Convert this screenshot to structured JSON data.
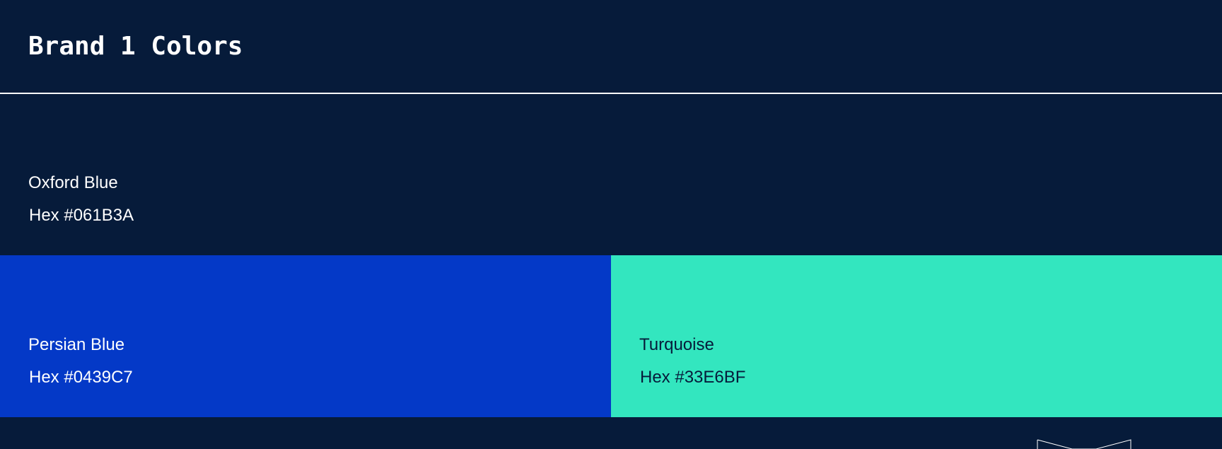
{
  "header": {
    "title": "Brand 1 Colors"
  },
  "swatches": [
    {
      "name": "Oxford Blue",
      "hex_label": "Hex #061B3A",
      "color": "#061B3A",
      "text_color": "#FFFFFF"
    },
    {
      "name": "Persian Blue",
      "hex_label": "Hex #0439C7",
      "color": "#0439C7",
      "text_color": "#FFFFFF"
    },
    {
      "name": "Turquoise",
      "hex_label": "Hex #33E6BF",
      "color": "#33E6BF",
      "text_color": "#061B3A"
    }
  ],
  "theme": {
    "background": "#061B3A",
    "divider": "#FFFFFF",
    "logo_stroke": "#FFFFFF"
  },
  "icons": {
    "footer_logo": "bowtie-logo-icon"
  }
}
